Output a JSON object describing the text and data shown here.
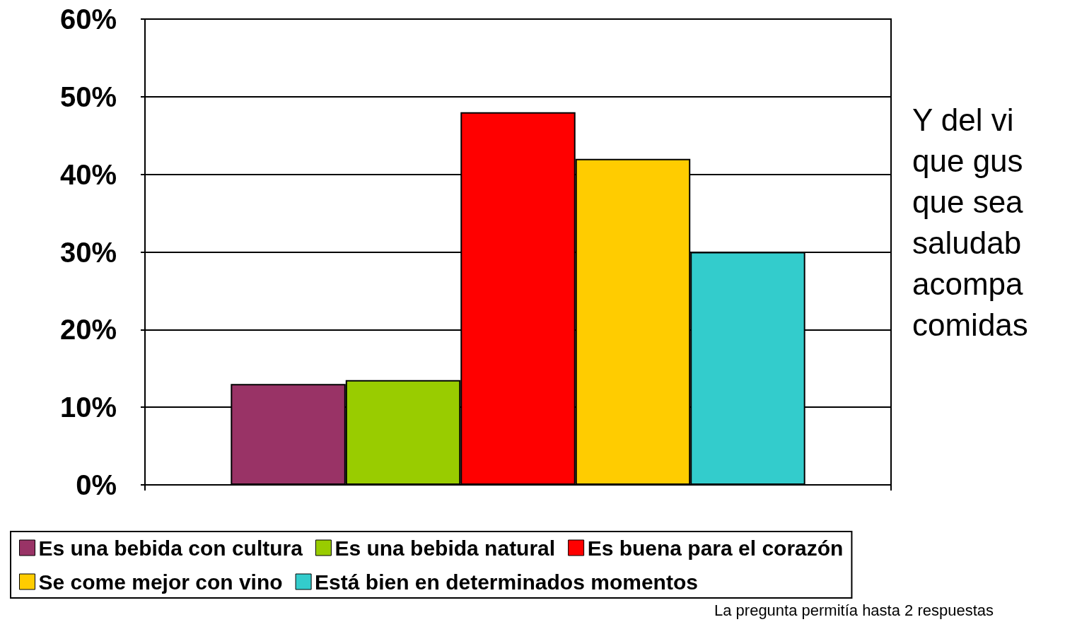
{
  "chart_data": {
    "type": "bar",
    "categories": [
      null
    ],
    "series": [
      {
        "name": "Es una bebida con cultura",
        "color": "#993366",
        "values": [
          13
        ]
      },
      {
        "name": "Es una bebida natural",
        "color": "#99cc00",
        "values": [
          13.5
        ]
      },
      {
        "name": "Es buena para el corazón",
        "color": "#ff0000",
        "values": [
          48
        ]
      },
      {
        "name": "Se come mejor con vino",
        "color": "#ffcc00",
        "values": [
          42
        ]
      },
      {
        "name": "Está bien en determinados momentos",
        "color": "#33cccc",
        "values": [
          30
        ]
      }
    ],
    "ylim": [
      0,
      60
    ],
    "yticks": [
      {
        "value": 0,
        "label": "0%"
      },
      {
        "value": 10,
        "label": "10%"
      },
      {
        "value": 20,
        "label": "20%"
      },
      {
        "value": 30,
        "label": "30%"
      },
      {
        "value": 40,
        "label": "40%"
      },
      {
        "value": 50,
        "label": "50%"
      },
      {
        "value": 60,
        "label": "60%"
      }
    ],
    "grid": "y",
    "legend": "bottom",
    "annotations": [
      "Y del vi\nque gus\nque sea\nsaludab\nacompa\ncomidas",
      "La pregunta permitía hasta 2 respuestas"
    ]
  }
}
